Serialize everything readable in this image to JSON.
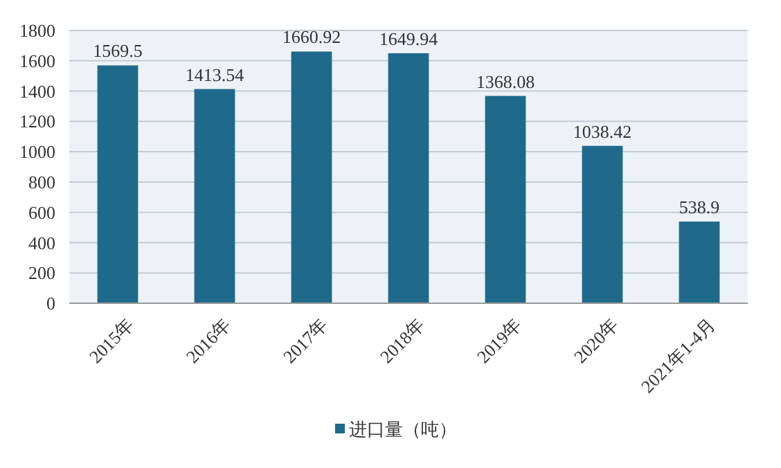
{
  "chart_data": {
    "type": "bar",
    "categories": [
      "2015年",
      "2016年",
      "2017年",
      "2018年",
      "2019年",
      "2020年",
      "2021年1-4月"
    ],
    "series": [
      {
        "name": "进口量（吨）",
        "color": "#1f6a8a",
        "values": [
          1569.5,
          1413.54,
          1660.92,
          1649.94,
          1368.08,
          1038.42,
          538.9
        ]
      }
    ],
    "ylim": [
      0,
      1800
    ],
    "yticks": [
      0,
      200,
      400,
      600,
      800,
      1000,
      1200,
      1400,
      1600,
      1800
    ],
    "grid": "y",
    "data_labels": true,
    "legend": "bottom"
  }
}
